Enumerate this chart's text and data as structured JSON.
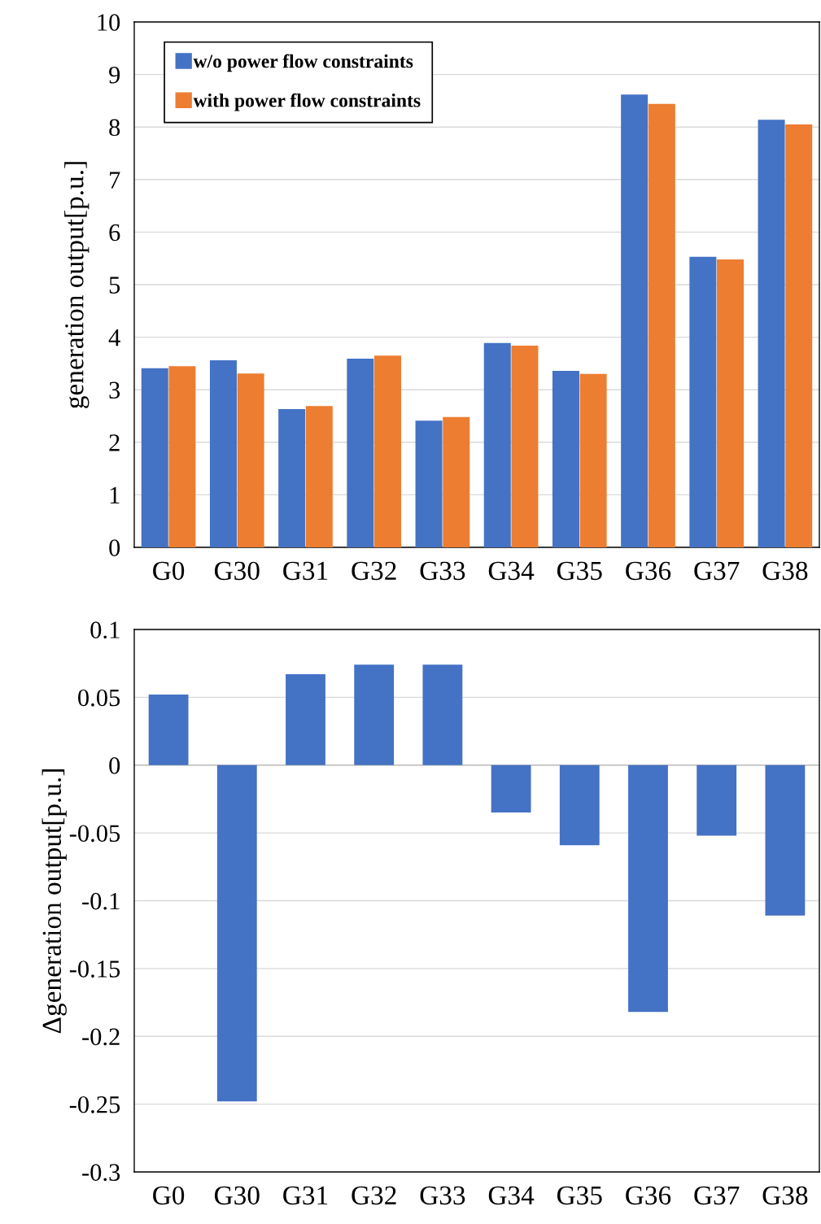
{
  "chart_data": [
    {
      "type": "bar",
      "ylabel": "generation output[p.u.]",
      "categories": [
        "G0",
        "G30",
        "G31",
        "G32",
        "G33",
        "G34",
        "G35",
        "G36",
        "G37",
        "G38"
      ],
      "series": [
        {
          "name": "w/o power flow constraints",
          "color": "#4472c4",
          "values": [
            3.41,
            3.56,
            2.63,
            3.59,
            2.41,
            3.89,
            3.36,
            8.62,
            5.53,
            8.14
          ]
        },
        {
          "name": "with power flow constraints",
          "color": "#ed7d31",
          "values": [
            3.45,
            3.31,
            2.69,
            3.65,
            2.48,
            3.84,
            3.3,
            8.44,
            5.48,
            8.05
          ]
        }
      ],
      "ylim": [
        0,
        10
      ],
      "yticks": [
        0,
        1,
        2,
        3,
        4,
        5,
        6,
        7,
        8,
        9,
        10
      ],
      "grid": "y",
      "legend": "top left"
    },
    {
      "type": "bar",
      "ylabel": "Δgeneration output[p.u.]",
      "categories": [
        "G0",
        "G30",
        "G31",
        "G32",
        "G33",
        "G34",
        "G35",
        "G36",
        "G37",
        "G38"
      ],
      "series": [
        {
          "color": "#4472c4",
          "values": [
            0.052,
            -0.248,
            0.067,
            0.074,
            0.074,
            -0.035,
            -0.059,
            -0.182,
            -0.052,
            -0.111
          ]
        }
      ],
      "ylim": [
        -0.3,
        0.1
      ],
      "yticks": [
        -0.3,
        -0.25,
        -0.2,
        -0.15,
        -0.1,
        -0.05,
        0,
        0.05,
        0.1
      ],
      "grid": "y"
    }
  ]
}
